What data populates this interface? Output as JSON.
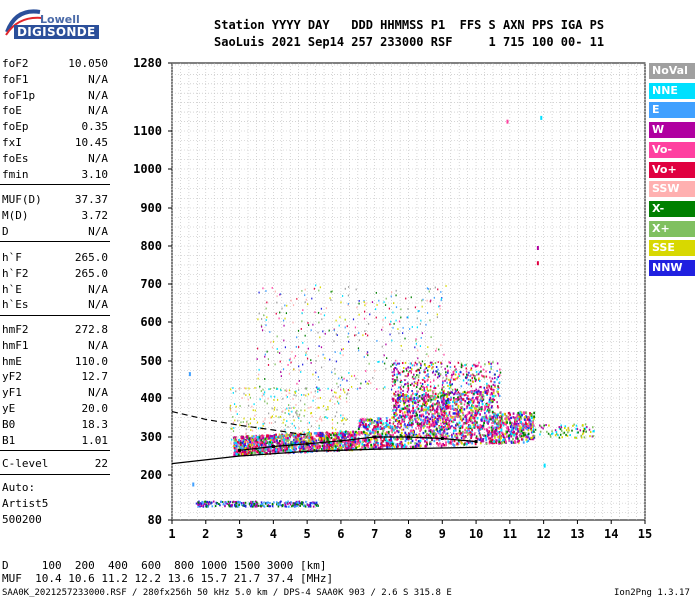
{
  "logo": {
    "line1": "Lowell",
    "line2": "DIGISONDE"
  },
  "header": {
    "line1": "Station YYYY DAY   DDD HHMMSS P1  FFS S AXN PPS IGA PS",
    "line2": "SaoLuis 2021 Sep14 257 233000 RSF     1 715 100 00- 11"
  },
  "params_group1": [
    {
      "name": "foF2",
      "value": "10.050"
    },
    {
      "name": "foF1",
      "value": "N/A"
    },
    {
      "name": "foF1p",
      "value": "N/A"
    },
    {
      "name": "foE",
      "value": "N/A"
    },
    {
      "name": "foEp",
      "value": "0.35"
    },
    {
      "name": "fxI",
      "value": "10.45"
    },
    {
      "name": "foEs",
      "value": "N/A"
    },
    {
      "name": "fmin",
      "value": "3.10"
    }
  ],
  "params_group2": [
    {
      "name": "MUF(D)",
      "value": "37.37"
    },
    {
      "name": "M(D)",
      "value": "3.72"
    },
    {
      "name": "D",
      "value": "N/A"
    }
  ],
  "params_group3": [
    {
      "name": "h`F",
      "value": "265.0"
    },
    {
      "name": "h`F2",
      "value": "265.0"
    },
    {
      "name": "h`E",
      "value": "N/A"
    },
    {
      "name": "h`Es",
      "value": "N/A"
    }
  ],
  "params_group4": [
    {
      "name": "hmF2",
      "value": "272.8"
    },
    {
      "name": "hmF1",
      "value": "N/A"
    },
    {
      "name": "hmE",
      "value": "110.0"
    },
    {
      "name": "yF2",
      "value": "12.7"
    },
    {
      "name": "yF1",
      "value": "N/A"
    },
    {
      "name": "yE",
      "value": "20.0"
    },
    {
      "name": "B0",
      "value": "18.3"
    },
    {
      "name": "B1",
      "value": "1.01"
    }
  ],
  "params_group5": [
    {
      "name": "C-level",
      "value": "22"
    }
  ],
  "autoscaling": {
    "line1": "Auto:",
    "line2": "Artist5",
    "line3": "500200"
  },
  "legend": [
    {
      "label": "NoVal",
      "color": "#a0a0a0"
    },
    {
      "label": "NNE",
      "color": "#00e0ff"
    },
    {
      "label": "E",
      "color": "#40a0ff"
    },
    {
      "label": "W",
      "color": "#b000a0"
    },
    {
      "label": "Vo-",
      "color": "#ff40a0"
    },
    {
      "label": "Vo+",
      "color": "#e00040"
    },
    {
      "label": "SSW",
      "color": "#ffb0b0"
    },
    {
      "label": "X-",
      "color": "#008000"
    },
    {
      "label": "X+",
      "color": "#80c060"
    },
    {
      "label": "SSE",
      "color": "#d8d800"
    },
    {
      "label": "NNW",
      "color": "#2020e0"
    }
  ],
  "footer": {
    "line1": "D     100  200  400  600  800 1000 1500 3000 [km]",
    "line2": "MUF  10.4 10.6 11.2 12.2 13.6 15.7 21.7 37.4 [MHz]",
    "line3": "SAA0K_2021257233000.RSF / 280fx256h 50 kHz 5.0 km / DPS-4 SAA0K 903 / 2.6 S 315.8 E",
    "version": "Ion2Png 1.3.17"
  },
  "chart_data": {
    "type": "scatter",
    "xlabel": "",
    "ylabel": "",
    "xlim": [
      1,
      15
    ],
    "ylim": [
      80,
      1280
    ],
    "x_ticks": [
      1,
      2,
      3,
      4,
      5,
      6,
      7,
      8,
      9,
      10,
      11,
      12,
      13,
      14,
      15
    ],
    "y_ticks": [
      80,
      200,
      300,
      400,
      500,
      600,
      700,
      800,
      900,
      1000,
      1100,
      1280
    ],
    "grid": true,
    "legend_position": "right",
    "y_scale": "nonlinear (compressed upper heights)",
    "clusters": [
      {
        "name": "F-layer main trace",
        "x": [
          2.7,
          11.8
        ],
        "y": [
          240,
          340
        ]
      },
      {
        "name": "F-layer spread",
        "x": [
          6.5,
          11.5
        ],
        "y": [
          260,
          500
        ]
      },
      {
        "name": "high echoes",
        "x": [
          3.5,
          9.0
        ],
        "y": [
          450,
          700
        ]
      },
      {
        "name": "low-height trace",
        "x": [
          1.7,
          5.3
        ],
        "y": [
          120,
          135
        ]
      }
    ],
    "profile_lines": [
      {
        "name": "solid profile",
        "x": [
          1.0,
          3.0,
          5.0,
          7.0,
          9.0,
          10.05
        ],
        "y": [
          230,
          250,
          262,
          268,
          271,
          272.8
        ]
      },
      {
        "name": "dashed profile",
        "x": [
          1.0,
          2.0,
          3.0,
          4.0,
          5.0
        ],
        "y": [
          365,
          345,
          330,
          318,
          305
        ]
      }
    ],
    "profile_line_with_markers": {
      "x": [
        3.0,
        4.0,
        5.0,
        6.0,
        7.0,
        8.0,
        9.0,
        10.0
      ],
      "y": [
        265,
        275,
        282,
        290,
        300,
        300,
        296,
        288
      ]
    }
  }
}
